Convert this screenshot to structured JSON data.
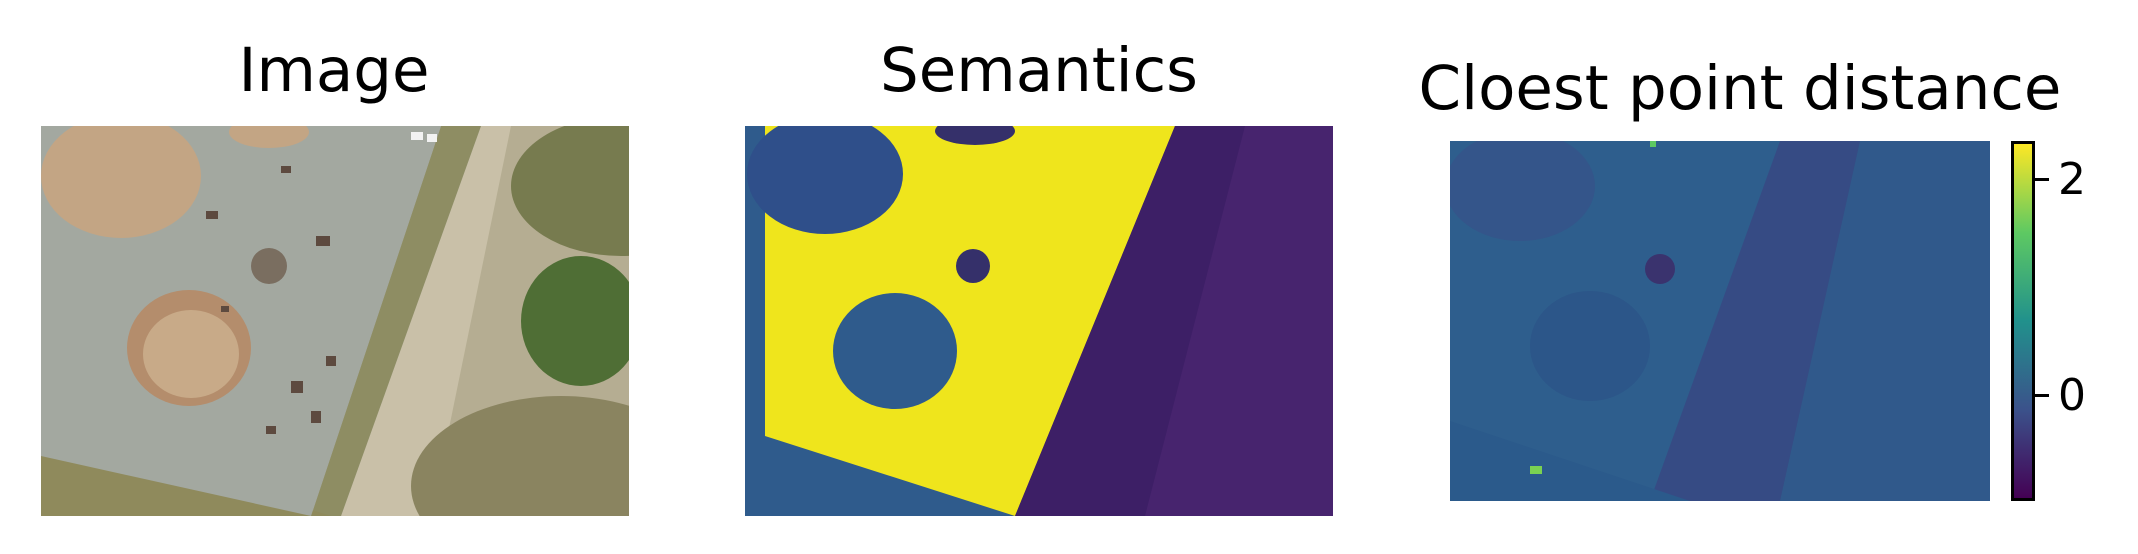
{
  "panels": [
    {
      "title": "Image"
    },
    {
      "title": "Semantics"
    },
    {
      "title": "Cloest point distance"
    }
  ],
  "colorbar": {
    "ticks": [
      "2",
      "0"
    ],
    "colormap": "viridis",
    "colors": [
      "#440154",
      "#3b528b",
      "#21918c",
      "#5ec962",
      "#fde725"
    ]
  },
  "colors": {
    "concrete": "#a7aca3",
    "sand": "#c0a27e",
    "grass": "#6f7d4c",
    "dark_green": "#4d6d33",
    "viridis_purple": "#3a0f58",
    "viridis_blue": "#2f5b8c",
    "viridis_yellow": "#efe51c"
  }
}
